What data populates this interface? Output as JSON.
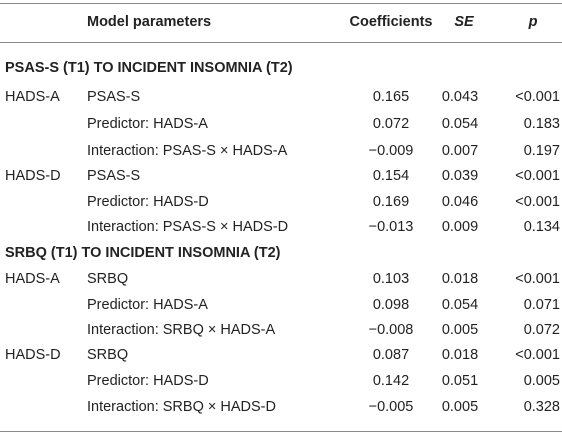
{
  "header": {
    "param": "Model parameters",
    "coef": "Coefficients",
    "se": "SE",
    "p": "p"
  },
  "sections": [
    {
      "title": "PSAS-S (T1) TO INCIDENT INSOMNIA (T2)",
      "rows": [
        {
          "group": "HADS-A",
          "param": "PSAS-S",
          "coef": "0.165",
          "se": "0.043",
          "p": "<0.001"
        },
        {
          "group": "",
          "param": "Predictor: HADS-A",
          "coef": "0.072",
          "se": "0.054",
          "p": "0.183"
        },
        {
          "group": "",
          "param": "Interaction: PSAS-S × HADS-A",
          "coef": "−0.009",
          "se": "0.007",
          "p": "0.197"
        },
        {
          "group": "HADS-D",
          "param": "PSAS-S",
          "coef": "0.154",
          "se": "0.039",
          "p": "<0.001"
        },
        {
          "group": "",
          "param": "Predictor: HADS-D",
          "coef": "0.169",
          "se": "0.046",
          "p": "<0.001"
        },
        {
          "group": "",
          "param": "Interaction: PSAS-S × HADS-D",
          "coef": "−0.013",
          "se": "0.009",
          "p": "0.134"
        }
      ]
    },
    {
      "title": "SRBQ (T1) TO INCIDENT INSOMNIA (T2)",
      "rows": [
        {
          "group": "HADS-A",
          "param": "SRBQ",
          "coef": "0.103",
          "se": "0.018",
          "p": "<0.001"
        },
        {
          "group": "",
          "param": "Predictor: HADS-A",
          "coef": "0.098",
          "se": "0.054",
          "p": "0.071"
        },
        {
          "group": "",
          "param": "Interaction: SRBQ × HADS-A",
          "coef": "−0.008",
          "se": "0.005",
          "p": "0.072"
        },
        {
          "group": "HADS-D",
          "param": "SRBQ",
          "coef": "0.087",
          "se": "0.018",
          "p": "<0.001"
        },
        {
          "group": "",
          "param": "Predictor: HADS-D",
          "coef": "0.142",
          "se": "0.051",
          "p": "0.005"
        },
        {
          "group": "",
          "param": "Interaction: SRBQ × HADS-D",
          "coef": "−0.005",
          "se": "0.005",
          "p": "0.328"
        }
      ]
    }
  ]
}
